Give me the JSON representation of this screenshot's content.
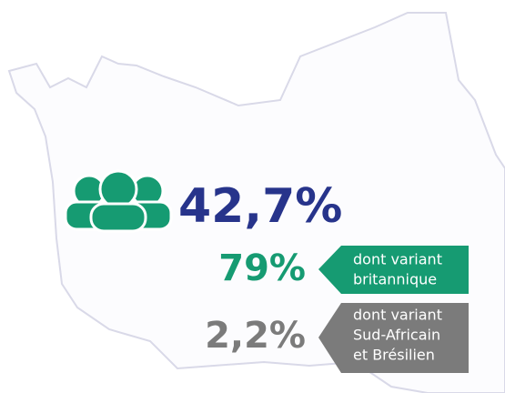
{
  "headline": {
    "value_text": "42,7%"
  },
  "variants": [
    {
      "value_text": "79%",
      "label_lines": [
        "dont variant",
        "britannique"
      ]
    },
    {
      "value_text": "2,2%",
      "label_lines": [
        "dont variant",
        "Sud-Africain",
        "et Brésilien"
      ]
    }
  ]
}
